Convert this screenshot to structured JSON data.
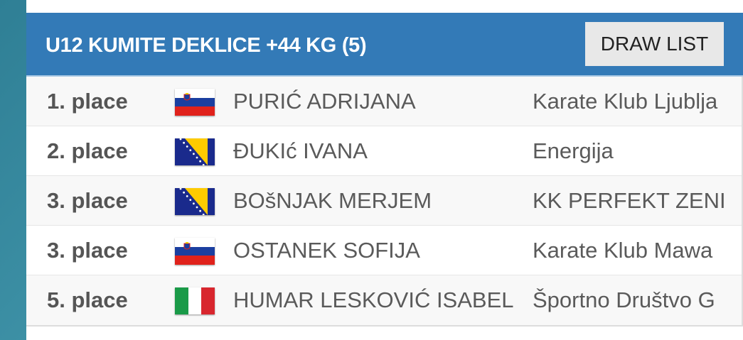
{
  "category": {
    "title": "U12 KUMITE DEKLICE +44 KG (5)",
    "draw_list_label": "DRAW LIST"
  },
  "results": [
    {
      "place": "1. place",
      "flag": "slovenia-flag",
      "name": "PURIĆ ADRIJANA",
      "club": "Karate Klub Ljublja"
    },
    {
      "place": "2. place",
      "flag": "bosnia-flag",
      "name": "ĐUKIć IVANA",
      "club": "Energija"
    },
    {
      "place": "3. place",
      "flag": "bosnia-flag",
      "name": "BOšNJAK MERJEM",
      "club": "KK PERFEKT ZENI"
    },
    {
      "place": "3. place",
      "flag": "slovenia-flag",
      "name": "OSTANEK SOFIJA",
      "club": "Karate Klub Mawa"
    },
    {
      "place": "5. place",
      "flag": "italy-flag",
      "name": "HUMAR LESKOVIĆ ISABEL",
      "club": "Športno Društvo G"
    }
  ],
  "colors": {
    "header": "#337ab7",
    "button": "#e8e8e8",
    "text": "#555555"
  }
}
